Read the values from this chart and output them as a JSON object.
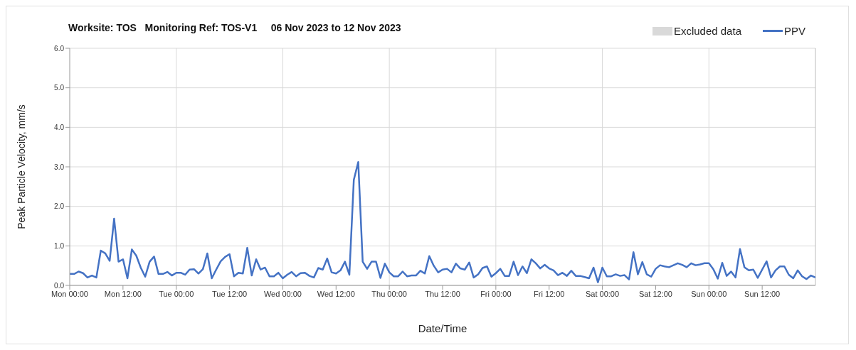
{
  "chart_data": {
    "type": "line",
    "title": "Worksite: TOS   Monitoring Ref: TOS-V1     06 Nov 2023 to 12 Nov 2023",
    "xlabel": "Date/Time",
    "ylabel": "Peak Particle Velocity, mm/s",
    "x": [
      "2023-11-06T00:00",
      "2023-11-06T01:00",
      "2023-11-06T02:00",
      "2023-11-06T03:00",
      "2023-11-06T04:00",
      "2023-11-06T05:00",
      "2023-11-06T06:00",
      "2023-11-06T07:00",
      "2023-11-06T08:00",
      "2023-11-06T09:00",
      "2023-11-06T10:00",
      "2023-11-06T11:00",
      "2023-11-06T12:00",
      "2023-11-06T13:00",
      "2023-11-06T14:00",
      "2023-11-06T15:00",
      "2023-11-06T16:00",
      "2023-11-06T17:00",
      "2023-11-06T18:00",
      "2023-11-06T19:00",
      "2023-11-06T20:00",
      "2023-11-06T21:00",
      "2023-11-06T22:00",
      "2023-11-06T23:00",
      "2023-11-07T00:00",
      "2023-11-07T01:00",
      "2023-11-07T02:00",
      "2023-11-07T03:00",
      "2023-11-07T04:00",
      "2023-11-07T05:00",
      "2023-11-07T06:00",
      "2023-11-07T07:00",
      "2023-11-07T08:00",
      "2023-11-07T09:00",
      "2023-11-07T10:00",
      "2023-11-07T11:00",
      "2023-11-07T12:00",
      "2023-11-07T13:00",
      "2023-11-07T14:00",
      "2023-11-07T15:00",
      "2023-11-07T16:00",
      "2023-11-07T17:00",
      "2023-11-07T18:00",
      "2023-11-07T19:00",
      "2023-11-07T20:00",
      "2023-11-07T21:00",
      "2023-11-07T22:00",
      "2023-11-07T23:00",
      "2023-11-08T00:00",
      "2023-11-08T01:00",
      "2023-11-08T02:00",
      "2023-11-08T03:00",
      "2023-11-08T04:00",
      "2023-11-08T05:00",
      "2023-11-08T06:00",
      "2023-11-08T07:00",
      "2023-11-08T08:00",
      "2023-11-08T09:00",
      "2023-11-08T10:00",
      "2023-11-08T11:00",
      "2023-11-08T12:00",
      "2023-11-08T13:00",
      "2023-11-08T14:00",
      "2023-11-08T15:00",
      "2023-11-08T16:00",
      "2023-11-08T17:00",
      "2023-11-08T18:00",
      "2023-11-08T19:00",
      "2023-11-08T20:00",
      "2023-11-08T21:00",
      "2023-11-08T22:00",
      "2023-11-08T23:00",
      "2023-11-09T00:00",
      "2023-11-09T01:00",
      "2023-11-09T02:00",
      "2023-11-09T03:00",
      "2023-11-09T04:00",
      "2023-11-09T05:00",
      "2023-11-09T06:00",
      "2023-11-09T07:00",
      "2023-11-09T08:00",
      "2023-11-09T09:00",
      "2023-11-09T10:00",
      "2023-11-09T11:00",
      "2023-11-09T12:00",
      "2023-11-09T13:00",
      "2023-11-09T14:00",
      "2023-11-09T15:00",
      "2023-11-09T16:00",
      "2023-11-09T17:00",
      "2023-11-09T18:00",
      "2023-11-09T19:00",
      "2023-11-09T20:00",
      "2023-11-09T21:00",
      "2023-11-09T22:00",
      "2023-11-09T23:00",
      "2023-11-10T00:00",
      "2023-11-10T01:00",
      "2023-11-10T02:00",
      "2023-11-10T03:00",
      "2023-11-10T04:00",
      "2023-11-10T05:00",
      "2023-11-10T06:00",
      "2023-11-10T07:00",
      "2023-11-10T08:00",
      "2023-11-10T09:00",
      "2023-11-10T10:00",
      "2023-11-10T11:00",
      "2023-11-10T12:00",
      "2023-11-10T13:00",
      "2023-11-10T14:00",
      "2023-11-10T15:00",
      "2023-11-10T16:00",
      "2023-11-10T17:00",
      "2023-11-10T18:00",
      "2023-11-10T19:00",
      "2023-11-10T20:00",
      "2023-11-10T21:00",
      "2023-11-10T22:00",
      "2023-11-10T23:00",
      "2023-11-11T00:00",
      "2023-11-11T01:00",
      "2023-11-11T02:00",
      "2023-11-11T03:00",
      "2023-11-11T04:00",
      "2023-11-11T05:00",
      "2023-11-11T06:00",
      "2023-11-11T07:00",
      "2023-11-11T08:00",
      "2023-11-11T09:00",
      "2023-11-11T10:00",
      "2023-11-11T11:00",
      "2023-11-11T12:00",
      "2023-11-11T13:00",
      "2023-11-11T14:00",
      "2023-11-11T15:00",
      "2023-11-11T16:00",
      "2023-11-11T17:00",
      "2023-11-11T18:00",
      "2023-11-11T19:00",
      "2023-11-11T20:00",
      "2023-11-11T21:00",
      "2023-11-11T22:00",
      "2023-11-11T23:00",
      "2023-11-12T00:00",
      "2023-11-12T01:00",
      "2023-11-12T02:00",
      "2023-11-12T03:00",
      "2023-11-12T04:00",
      "2023-11-12T05:00",
      "2023-11-12T06:00",
      "2023-11-12T07:00",
      "2023-11-12T08:00",
      "2023-11-12T09:00",
      "2023-11-12T10:00",
      "2023-11-12T11:00",
      "2023-11-12T12:00",
      "2023-11-12T13:00",
      "2023-11-12T14:00",
      "2023-11-12T15:00",
      "2023-11-12T16:00",
      "2023-11-12T17:00",
      "2023-11-12T18:00",
      "2023-11-12T19:00",
      "2023-11-12T20:00",
      "2023-11-12T21:00",
      "2023-11-12T22:00",
      "2023-11-12T23:00",
      "2023-11-13T00:00"
    ],
    "series": [
      {
        "name": "Excluded data",
        "type": "area",
        "color": "#d9d9d9",
        "values": [
          null,
          null,
          null,
          null,
          null,
          null,
          null,
          null,
          null,
          null,
          null,
          null,
          null,
          null,
          null,
          null,
          null,
          null,
          null,
          null,
          null,
          null,
          null,
          null,
          null,
          null,
          null,
          null,
          null,
          null,
          null,
          null,
          null,
          null,
          null,
          null,
          null,
          null,
          null,
          null,
          null,
          null,
          null,
          null,
          null,
          null,
          null,
          null,
          null,
          null,
          null,
          null,
          null,
          null,
          null,
          null,
          null,
          null,
          null,
          null,
          null,
          null,
          null,
          null,
          null,
          null,
          null,
          null,
          null,
          null,
          null,
          null,
          null,
          null,
          null,
          null,
          null,
          null,
          null,
          null,
          null,
          null,
          null,
          null,
          null,
          null,
          null,
          null,
          null,
          null,
          null,
          null,
          null,
          null,
          null,
          null,
          null,
          null,
          null,
          null,
          null,
          null,
          null,
          null,
          null,
          null,
          null,
          null,
          null,
          null,
          null,
          null,
          null,
          null,
          null,
          null,
          null,
          null,
          null,
          null,
          null,
          null,
          null,
          null,
          null,
          null,
          null,
          null,
          null,
          null,
          null,
          null,
          null,
          null,
          null,
          null,
          null,
          null,
          null,
          null,
          null,
          null,
          null,
          null,
          null,
          null,
          null,
          null,
          null,
          null,
          null,
          null,
          null,
          null,
          null,
          null,
          null,
          null,
          null,
          null,
          null,
          null,
          null,
          null,
          null,
          null,
          null,
          null,
          null
        ]
      },
      {
        "name": "PPV",
        "color": "#4472c4",
        "values": [
          0.29,
          0.29,
          0.35,
          0.31,
          0.2,
          0.25,
          0.2,
          0.88,
          0.81,
          0.62,
          1.69,
          0.6,
          0.66,
          0.18,
          0.91,
          0.75,
          0.45,
          0.22,
          0.6,
          0.73,
          0.29,
          0.29,
          0.34,
          0.25,
          0.32,
          0.32,
          0.27,
          0.4,
          0.41,
          0.3,
          0.41,
          0.81,
          0.18,
          0.4,
          0.61,
          0.72,
          0.79,
          0.23,
          0.32,
          0.3,
          0.95,
          0.25,
          0.66,
          0.4,
          0.45,
          0.23,
          0.23,
          0.32,
          0.18,
          0.27,
          0.34,
          0.23,
          0.31,
          0.32,
          0.24,
          0.2,
          0.44,
          0.4,
          0.68,
          0.33,
          0.3,
          0.38,
          0.6,
          0.27,
          2.67,
          3.12,
          0.6,
          0.42,
          0.6,
          0.6,
          0.19,
          0.55,
          0.33,
          0.23,
          0.23,
          0.35,
          0.23,
          0.25,
          0.25,
          0.37,
          0.3,
          0.74,
          0.5,
          0.33,
          0.4,
          0.42,
          0.33,
          0.55,
          0.43,
          0.4,
          0.58,
          0.2,
          0.28,
          0.44,
          0.48,
          0.22,
          0.31,
          0.42,
          0.24,
          0.24,
          0.6,
          0.26,
          0.48,
          0.31,
          0.66,
          0.56,
          0.43,
          0.52,
          0.43,
          0.38,
          0.26,
          0.32,
          0.24,
          0.37,
          0.24,
          0.24,
          0.21,
          0.18,
          0.45,
          0.08,
          0.45,
          0.23,
          0.23,
          0.28,
          0.24,
          0.26,
          0.15,
          0.84,
          0.28,
          0.59,
          0.28,
          0.22,
          0.42,
          0.51,
          0.48,
          0.46,
          0.51,
          0.56,
          0.52,
          0.46,
          0.56,
          0.51,
          0.53,
          0.56,
          0.56,
          0.41,
          0.17,
          0.57,
          0.24,
          0.35,
          0.2,
          0.92,
          0.46,
          0.38,
          0.4,
          0.19,
          0.4,
          0.61,
          0.2,
          0.38,
          0.48,
          0.48,
          0.27,
          0.18,
          0.38,
          0.23,
          0.16,
          0.25,
          0.2
        ]
      }
    ],
    "xlim": [
      "2023-11-06T00:00",
      "2023-11-13T00:00"
    ],
    "xticks": [
      {
        "value": "2023-11-06T00:00",
        "label": "Mon 00:00"
      },
      {
        "value": "2023-11-06T12:00",
        "label": "Mon 12:00"
      },
      {
        "value": "2023-11-07T00:00",
        "label": "Tue 00:00"
      },
      {
        "value": "2023-11-07T12:00",
        "label": "Tue 12:00"
      },
      {
        "value": "2023-11-08T00:00",
        "label": "Wed 00:00"
      },
      {
        "value": "2023-11-08T12:00",
        "label": "Wed 12:00"
      },
      {
        "value": "2023-11-09T00:00",
        "label": "Thu 00:00"
      },
      {
        "value": "2023-11-09T12:00",
        "label": "Thu 12:00"
      },
      {
        "value": "2023-11-10T00:00",
        "label": "Fri 00:00"
      },
      {
        "value": "2023-11-10T12:00",
        "label": "Fri 12:00"
      },
      {
        "value": "2023-11-11T00:00",
        "label": "Sat 00:00"
      },
      {
        "value": "2023-11-11T12:00",
        "label": "Sat 12:00"
      },
      {
        "value": "2023-11-12T00:00",
        "label": "Sun 00:00"
      },
      {
        "value": "2023-11-12T12:00",
        "label": "Sun 12:00"
      }
    ],
    "ylim": [
      0,
      6
    ],
    "yticks": [
      {
        "value": 0,
        "label": "0.0"
      },
      {
        "value": 1,
        "label": "1.0"
      },
      {
        "value": 2,
        "label": "2.0"
      },
      {
        "value": 3,
        "label": "3.0"
      },
      {
        "value": 4,
        "label": "4.0"
      },
      {
        "value": 5,
        "label": "5.0"
      },
      {
        "value": 6,
        "label": "6.0"
      }
    ],
    "grid": true,
    "legend": "top right",
    "marker": "none",
    "line_style": "solid"
  }
}
